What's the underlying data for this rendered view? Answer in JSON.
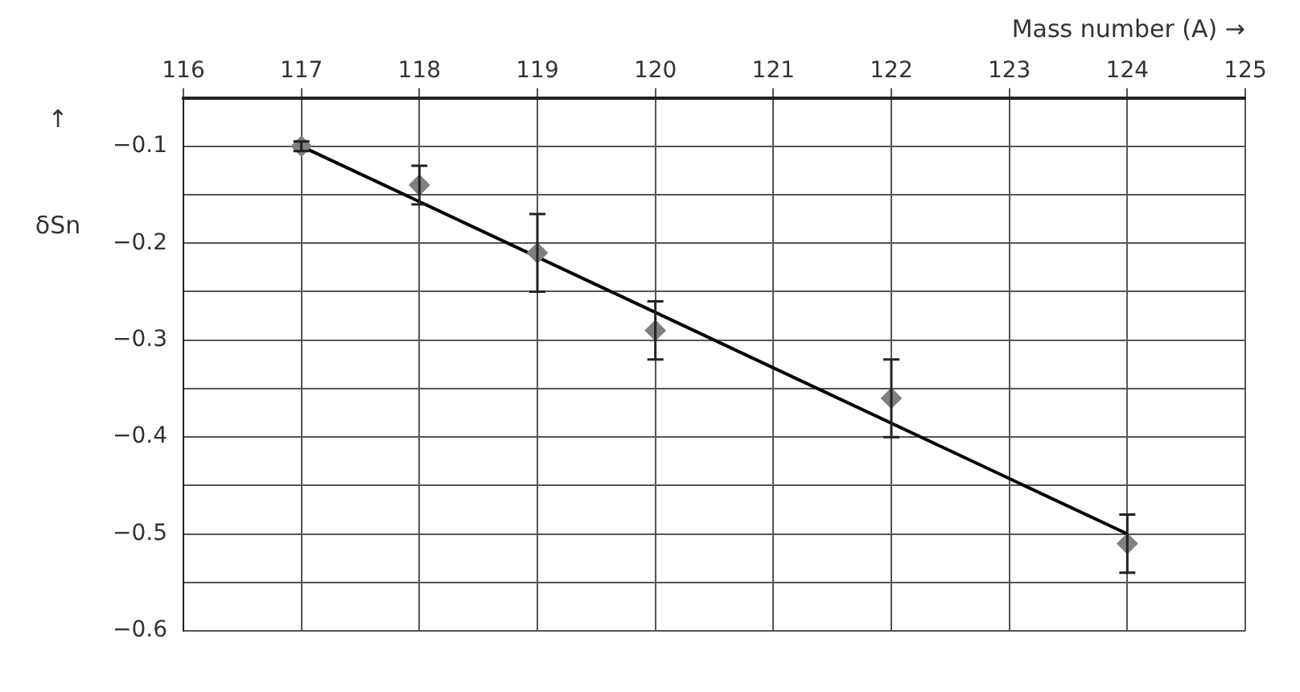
{
  "chart_data": {
    "type": "scatter",
    "xlabel": "Mass number (A) →",
    "ylabel": "↑ δSn",
    "xlim": [
      116,
      125
    ],
    "xticks": [
      116,
      117,
      118,
      119,
      120,
      121,
      122,
      123,
      124,
      125
    ],
    "ylim": [
      -0.6,
      -0.05
    ],
    "yticks": [
      {
        "value": -0.1,
        "label": "−0.1"
      },
      {
        "value": -0.15,
        "label": null
      },
      {
        "value": -0.2,
        "label": "−0.2"
      },
      {
        "value": -0.25,
        "label": null
      },
      {
        "value": -0.3,
        "label": "−0.3"
      },
      {
        "value": -0.35,
        "label": null
      },
      {
        "value": -0.4,
        "label": "−0.4"
      },
      {
        "value": -0.45,
        "label": null
      },
      {
        "value": -0.5,
        "label": "−0.5"
      },
      {
        "value": -0.55,
        "label": null
      },
      {
        "value": -0.6,
        "label": "−0.6"
      }
    ],
    "grid": true,
    "series": [
      {
        "color": "#808080",
        "marker": "diamond",
        "x": [
          117,
          118,
          119,
          120,
          122,
          124
        ],
        "values": [
          -0.1,
          -0.14,
          -0.21,
          -0.29,
          -0.36,
          -0.51
        ],
        "errors": [
          0.005,
          [
            -0.16,
            -0.12
          ],
          [
            -0.25,
            -0.17
          ],
          [
            -0.32,
            -0.26
          ],
          [
            -0.4,
            -0.32
          ],
          [
            -0.54,
            -0.48
          ]
        ]
      },
      {
        "type": "line",
        "color": "#000000",
        "line_style": "solid",
        "x": [
          117,
          124
        ],
        "values": [
          -0.1,
          -0.5
        ]
      }
    ]
  }
}
